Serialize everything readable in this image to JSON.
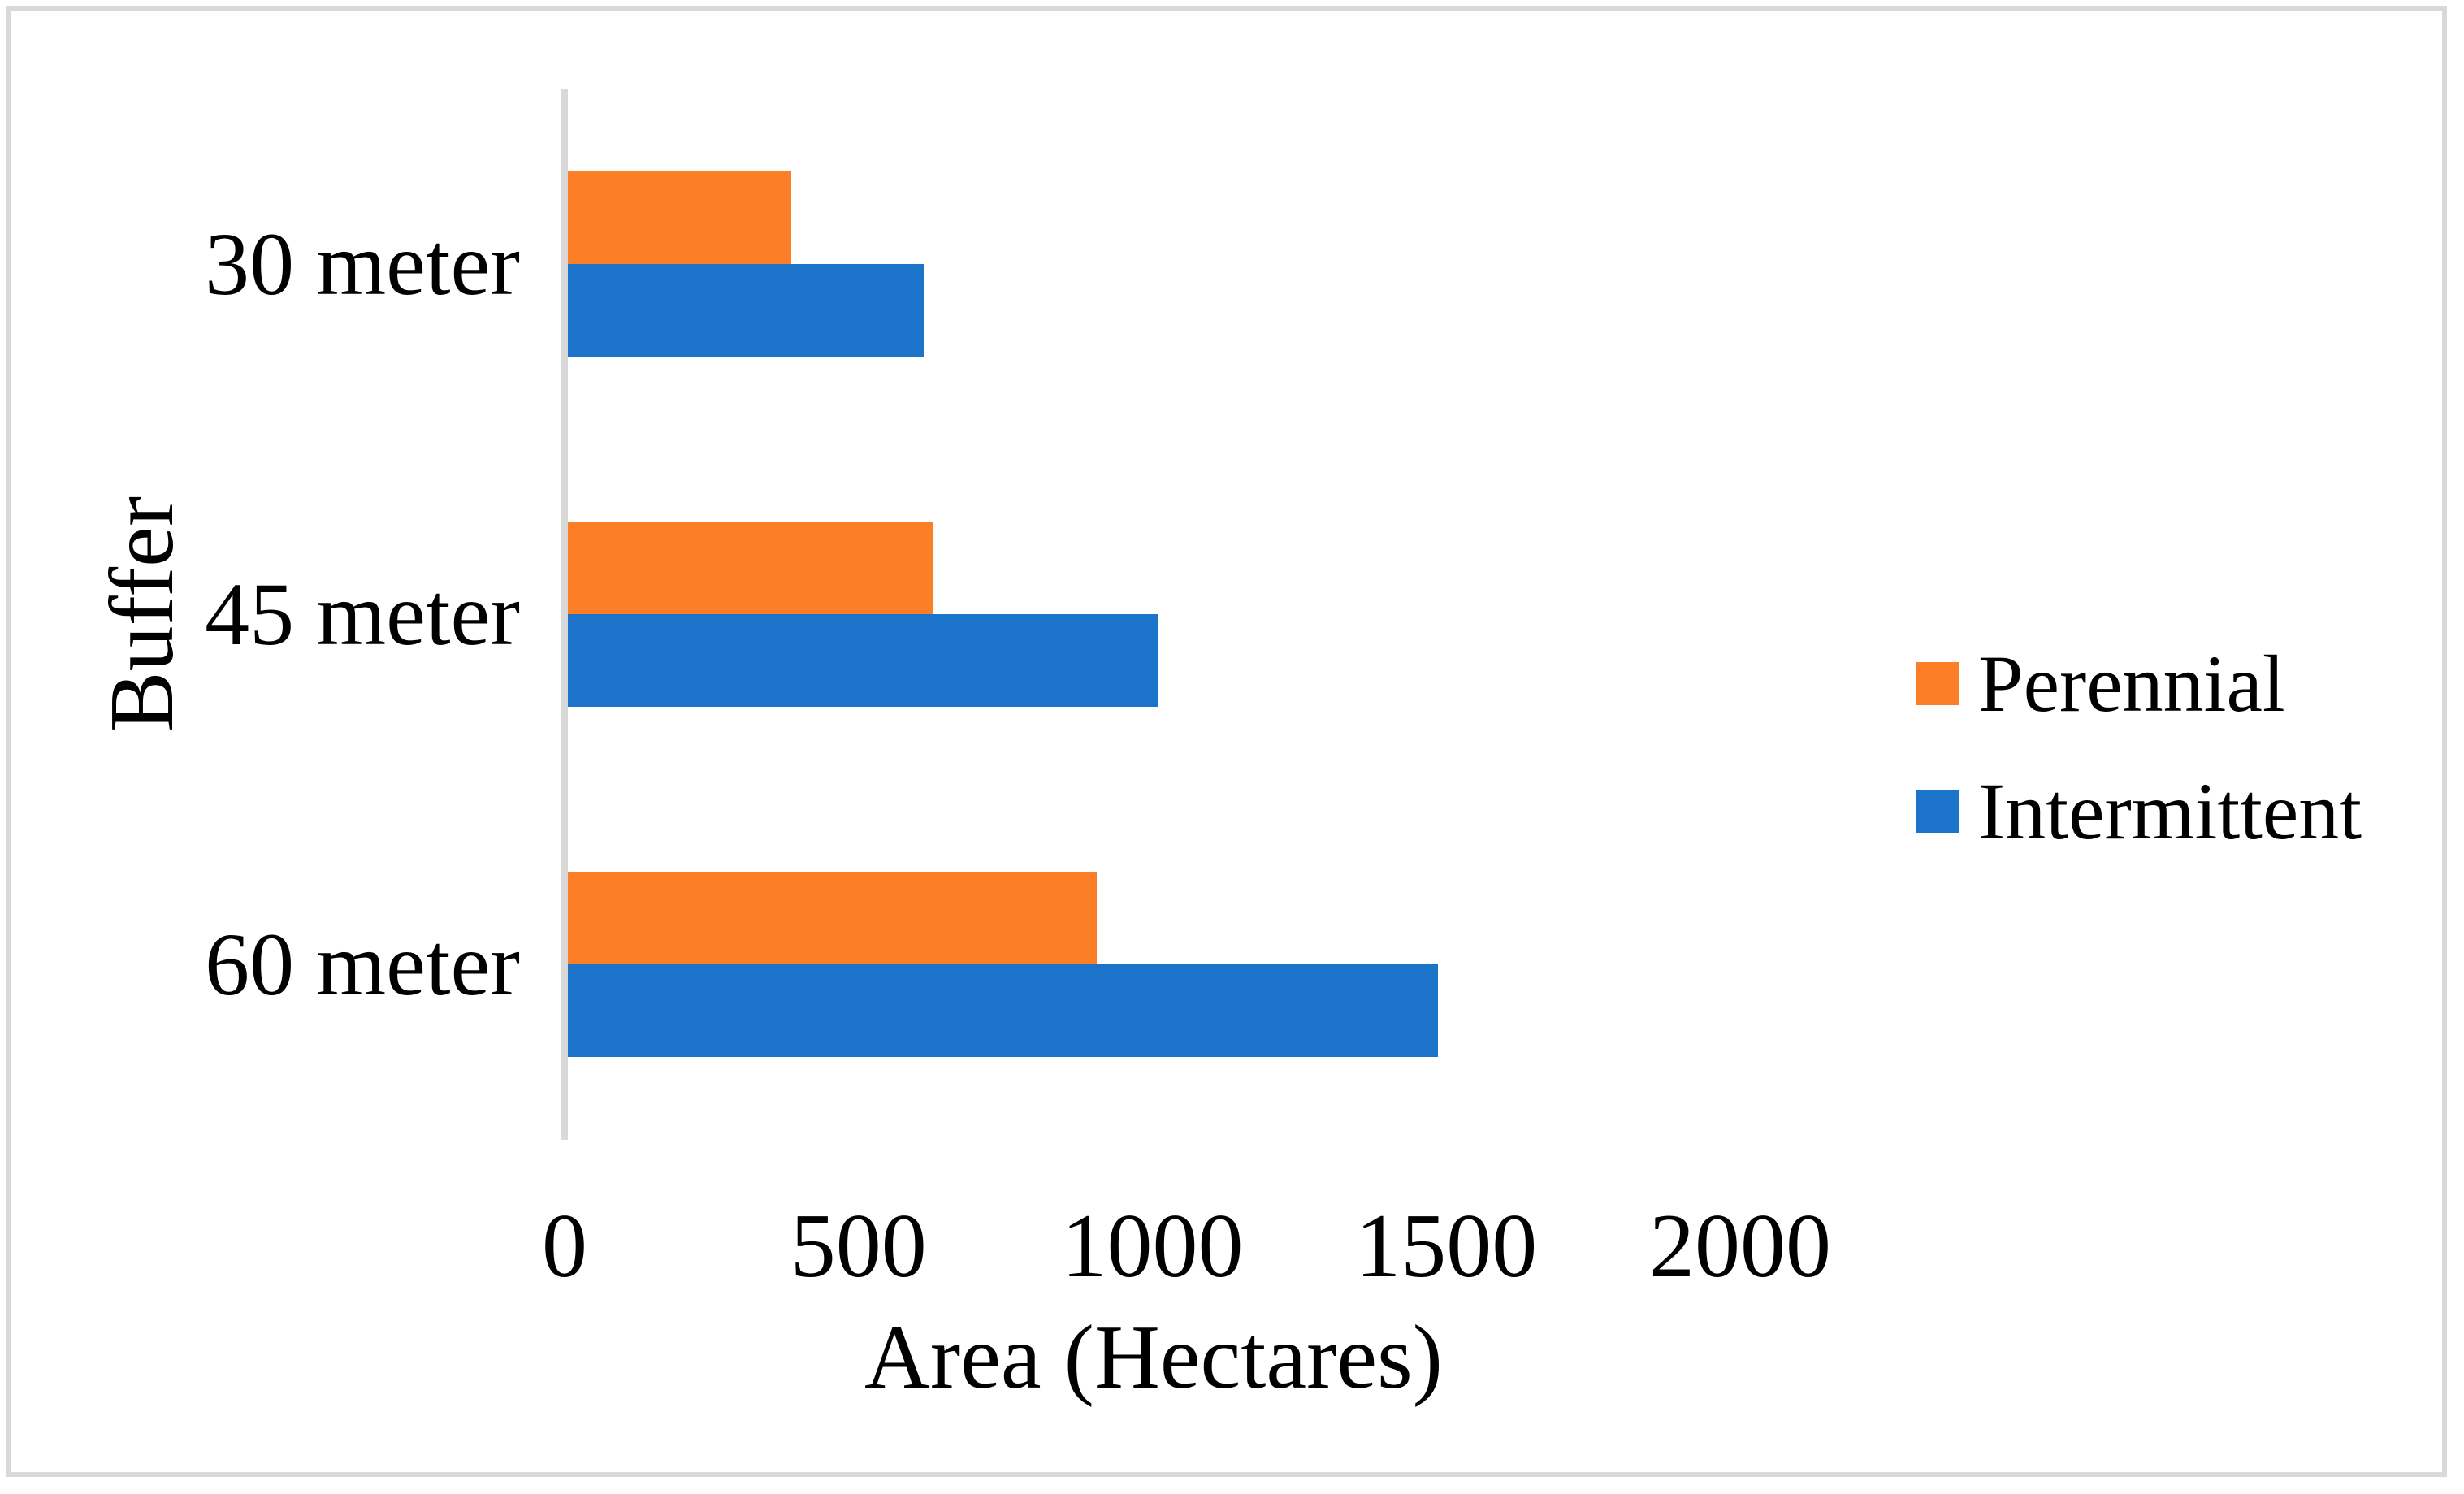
{
  "chart_data": {
    "type": "bar",
    "orientation": "horizontal",
    "title": "",
    "xlabel": "Area (Hectares)",
    "ylabel": "Buffer",
    "categories": [
      "30 meter",
      "45 meter",
      "60 meter"
    ],
    "series": [
      {
        "name": "Perennial",
        "color": "#fc7e27",
        "values": [
          380,
          620,
          900
        ]
      },
      {
        "name": "Intermittent",
        "color": "#1b74c9",
        "values": [
          605,
          1005,
          1480
        ]
      }
    ],
    "x_ticks": [
      0,
      500,
      1000,
      1500,
      2000
    ],
    "x_tick_labels": [
      "0",
      "500",
      "1000",
      "1500",
      "2000"
    ],
    "xlim": [
      0,
      2000
    ],
    "grid": false,
    "legend_position": "right",
    "legend_labels": [
      "Perennial",
      "Intermittent"
    ]
  },
  "colors": {
    "background": "#ffffff",
    "frame_border": "#d9d9d9",
    "axis_line": "#d9d9d9",
    "text": "#000000",
    "perennial": "#fc7e27",
    "intermittent": "#1b74c9"
  }
}
